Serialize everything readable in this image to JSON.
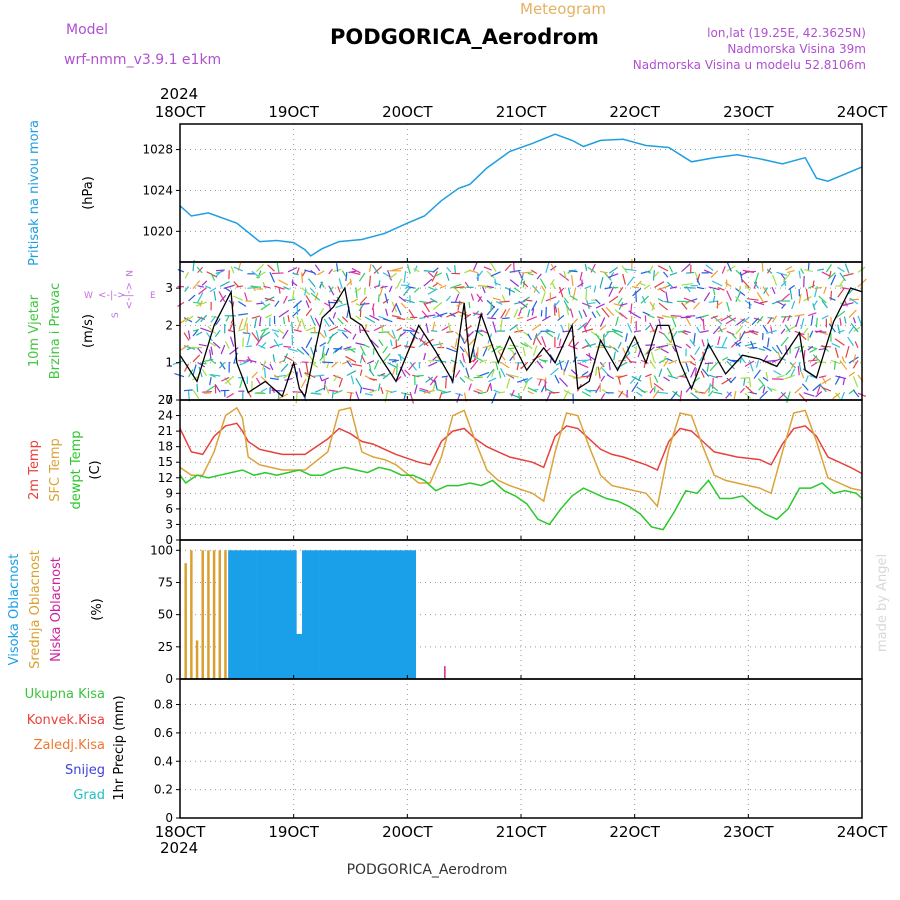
{
  "header": {
    "model_label": "Model",
    "model_name": "wrf-nmm_v3.9.1  e1km",
    "title": "PODGORICA_Aerodrom",
    "subtitle": "Meteogram",
    "lonlat": "lon,lat (19.25E, 42.3625N)",
    "elevation": "Nadmorska Visina 39m",
    "model_elevation": "Nadmorska Visina u modelu 52.8106m",
    "year_top": "2024",
    "year_bottom": "2024",
    "footer_station": "PODGORICA_Aerodrom",
    "watermark": "made by Angel"
  },
  "colors": {
    "pressure": "#1f9fe0",
    "temp2m": "#e8413c",
    "sfc_temp": "#dba33a",
    "dewpoint": "#2cc82c",
    "wind_line": "#000000",
    "wind_label": "#3fc63f",
    "wind_dir_label": "#c070e0",
    "cloud_high": "#1aa0e8",
    "cloud_mid": "#d9a030",
    "cloud_low": "#d020a0",
    "precip_total": "#3bc43b",
    "precip_conv": "#e8413c",
    "precip_frz": "#f07830",
    "precip_snow": "#4040e0",
    "precip_hail": "#22c0c0",
    "grid": "#999999",
    "header_purple": "#b050d0",
    "header_orange": "#e8b060"
  },
  "chart_data": [
    {
      "type": "line",
      "id": "pressure",
      "label_lines": [
        "Pritisak na nivou mora"
      ],
      "units": "(hPa)",
      "xlim_days": [
        18,
        24
      ],
      "ylim": [
        1017,
        1030.5
      ],
      "yticks": [
        "1020",
        "1024",
        "1028"
      ],
      "ytick_values": [
        1020,
        1024,
        1028
      ],
      "series": [
        {
          "x": [
            18.0,
            18.1,
            18.25,
            18.5,
            18.7,
            18.85,
            19.0,
            19.1,
            19.15,
            19.25,
            19.4,
            19.6,
            19.8,
            20.0,
            20.15,
            20.3,
            20.45,
            20.55,
            20.7,
            20.9,
            21.1,
            21.3,
            21.45,
            21.55,
            21.7,
            21.9,
            22.1,
            22.3,
            22.5,
            22.7,
            22.9,
            23.1,
            23.3,
            23.5,
            23.6,
            23.7,
            23.85,
            24.0
          ],
          "y": [
            1022.5,
            1021.5,
            1021.8,
            1020.8,
            1019.0,
            1019.1,
            1018.9,
            1018.2,
            1017.6,
            1018.3,
            1019.0,
            1019.2,
            1019.8,
            1020.8,
            1021.5,
            1023.0,
            1024.2,
            1024.6,
            1026.2,
            1027.8,
            1028.6,
            1029.5,
            1028.9,
            1028.3,
            1028.9,
            1029.0,
            1028.4,
            1028.2,
            1026.8,
            1027.2,
            1027.5,
            1027.1,
            1026.6,
            1027.2,
            1025.2,
            1024.9,
            1025.6,
            1026.3
          ]
        }
      ]
    },
    {
      "type": "line",
      "id": "wind",
      "label_lines": [
        "10m Vjetar",
        "Brzina i Pravac"
      ],
      "units": "(m/s)",
      "dir_labels": [
        "N",
        "W",
        "E",
        "S"
      ],
      "xlim_days": [
        18,
        24
      ],
      "ylim": [
        0,
        3.7
      ],
      "yticks": [
        "0",
        "1",
        "2",
        "3"
      ],
      "ytick_values": [
        0,
        1,
        2,
        3
      ],
      "series": [
        {
          "name": "wind speed",
          "x": [
            18.0,
            18.15,
            18.3,
            18.45,
            18.5,
            18.6,
            18.75,
            18.9,
            19.0,
            19.05,
            19.1,
            19.25,
            19.35,
            19.45,
            19.5,
            19.6,
            19.75,
            19.9,
            20.1,
            20.25,
            20.4,
            20.5,
            20.55,
            20.65,
            20.8,
            20.9,
            21.05,
            21.2,
            21.3,
            21.45,
            21.5,
            21.6,
            21.7,
            21.85,
            22.0,
            22.1,
            22.2,
            22.3,
            22.4,
            22.5,
            22.65,
            22.8,
            22.95,
            23.1,
            23.25,
            23.45,
            23.5,
            23.6,
            23.75,
            23.9,
            24.0
          ],
          "y": [
            1.2,
            0.5,
            2.0,
            2.9,
            1.0,
            0.2,
            0.5,
            0.1,
            1.0,
            0.3,
            0.1,
            2.2,
            2.5,
            3.0,
            2.2,
            2.0,
            1.2,
            0.5,
            2.0,
            1.3,
            0.5,
            2.6,
            1.0,
            2.3,
            1.0,
            1.7,
            0.8,
            1.4,
            1.0,
            2.0,
            0.3,
            0.5,
            1.6,
            0.8,
            1.7,
            1.0,
            2.0,
            2.0,
            1.0,
            0.3,
            1.5,
            0.7,
            1.2,
            1.1,
            0.9,
            1.8,
            0.8,
            0.6,
            2.1,
            3.0,
            2.9
          ]
        }
      ]
    },
    {
      "type": "line",
      "id": "temperature",
      "label_lines": [
        "2m Temp",
        "SFC Temp",
        "dewpt Temp"
      ],
      "units": "(C)",
      "xlim_days": [
        18,
        24
      ],
      "ylim": [
        0,
        27
      ],
      "yticks": [
        "0",
        "3",
        "6",
        "9",
        "12",
        "15",
        "18",
        "21",
        "24",
        "27"
      ],
      "ytick_values": [
        0,
        3,
        6,
        9,
        12,
        15,
        18,
        21,
        24,
        27
      ],
      "series": [
        {
          "name": "2m Temp",
          "x": [
            18.0,
            18.1,
            18.2,
            18.3,
            18.4,
            18.5,
            18.55,
            18.6,
            18.7,
            18.8,
            18.9,
            19.1,
            19.3,
            19.4,
            19.5,
            19.6,
            19.7,
            19.8,
            19.9,
            20.1,
            20.2,
            20.3,
            20.4,
            20.5,
            20.6,
            20.7,
            20.8,
            20.9,
            21.1,
            21.2,
            21.3,
            21.4,
            21.5,
            21.6,
            21.7,
            21.8,
            21.9,
            22.1,
            22.2,
            22.3,
            22.4,
            22.5,
            22.6,
            22.7,
            22.8,
            22.9,
            23.1,
            23.2,
            23.3,
            23.4,
            23.5,
            23.6,
            23.7,
            23.8,
            23.9,
            24.0
          ],
          "y": [
            21.5,
            17.0,
            16.5,
            20.0,
            22.0,
            22.5,
            21.0,
            19.0,
            17.5,
            17.0,
            16.5,
            16.5,
            19.5,
            21.5,
            20.5,
            19.0,
            18.5,
            17.5,
            16.5,
            15.0,
            14.5,
            19.0,
            21.0,
            21.5,
            19.5,
            18.0,
            17.0,
            16.0,
            15.0,
            14.0,
            20.0,
            22.0,
            21.5,
            19.5,
            17.5,
            16.5,
            16.0,
            14.5,
            13.5,
            19.0,
            21.5,
            21.0,
            19.0,
            17.0,
            16.5,
            16.0,
            15.5,
            14.5,
            18.5,
            21.5,
            22.0,
            20.0,
            16.0,
            15.0,
            14.0,
            12.8
          ]
        },
        {
          "name": "SFC Temp",
          "x": [
            18.0,
            18.1,
            18.2,
            18.3,
            18.4,
            18.5,
            18.55,
            18.6,
            18.7,
            18.8,
            18.9,
            19.1,
            19.3,
            19.4,
            19.5,
            19.6,
            19.7,
            19.8,
            19.9,
            20.1,
            20.2,
            20.3,
            20.4,
            20.5,
            20.6,
            20.7,
            20.8,
            20.9,
            21.1,
            21.2,
            21.3,
            21.4,
            21.5,
            21.6,
            21.7,
            21.8,
            21.9,
            22.1,
            22.2,
            22.3,
            22.4,
            22.5,
            22.6,
            22.7,
            22.8,
            22.9,
            23.1,
            23.2,
            23.3,
            23.4,
            23.5,
            23.6,
            23.7,
            23.8,
            23.9,
            24.0
          ],
          "y": [
            14.0,
            12.5,
            12.5,
            17.0,
            24.0,
            25.5,
            23.5,
            16.0,
            14.5,
            14.0,
            13.5,
            13.5,
            17.0,
            25.0,
            25.5,
            17.0,
            16.0,
            15.5,
            14.5,
            11.0,
            11.0,
            16.0,
            24.0,
            25.0,
            19.0,
            13.5,
            11.5,
            10.5,
            9.0,
            7.5,
            17.0,
            24.5,
            24.0,
            18.0,
            12.5,
            10.5,
            10.0,
            9.0,
            6.5,
            17.5,
            24.5,
            24.0,
            18.0,
            12.5,
            11.5,
            11.0,
            10.0,
            9.0,
            17.0,
            24.5,
            25.0,
            19.0,
            12.0,
            11.0,
            10.0,
            9.5
          ]
        },
        {
          "name": "dewpt Temp",
          "x": [
            18.0,
            18.05,
            18.15,
            18.25,
            18.35,
            18.45,
            18.55,
            18.65,
            18.75,
            18.85,
            18.95,
            19.05,
            19.15,
            19.25,
            19.35,
            19.45,
            19.55,
            19.65,
            19.75,
            19.85,
            19.95,
            20.05,
            20.15,
            20.25,
            20.35,
            20.45,
            20.55,
            20.65,
            20.75,
            20.85,
            20.95,
            21.05,
            21.15,
            21.25,
            21.35,
            21.45,
            21.55,
            21.65,
            21.75,
            21.85,
            21.95,
            22.05,
            22.15,
            22.25,
            22.35,
            22.45,
            22.55,
            22.65,
            22.75,
            22.85,
            22.95,
            23.05,
            23.15,
            23.25,
            23.35,
            23.45,
            23.55,
            23.65,
            23.75,
            23.85,
            23.95,
            24.0
          ],
          "y": [
            12.5,
            11.0,
            12.5,
            12.0,
            12.5,
            13.0,
            13.5,
            12.5,
            13.0,
            12.5,
            13.0,
            13.5,
            12.5,
            12.5,
            13.5,
            14.0,
            13.5,
            13.0,
            14.0,
            13.5,
            12.5,
            12.5,
            11.5,
            9.5,
            10.5,
            10.5,
            11.0,
            10.5,
            11.5,
            9.5,
            8.5,
            7.0,
            4.0,
            3.0,
            6.0,
            8.5,
            10.0,
            9.0,
            8.0,
            7.5,
            6.5,
            5.0,
            2.5,
            2.0,
            5.5,
            9.5,
            9.0,
            11.5,
            8.0,
            8.0,
            8.5,
            6.5,
            5.0,
            4.0,
            6.0,
            10.0,
            10.0,
            11.0,
            9.0,
            9.5,
            9.0,
            8.0
          ]
        }
      ]
    },
    {
      "type": "bar",
      "id": "clouds",
      "label_lines": [
        "Visoka Oblacnost",
        "Srednja Oblacnost",
        "Niska Oblacnost"
      ],
      "units": "(%)",
      "xlim_days": [
        18,
        24
      ],
      "ylim": [
        0,
        108
      ],
      "yticks": [
        "0",
        "25",
        "50",
        "75",
        "100"
      ],
      "ytick_values": [
        0,
        25,
        50,
        75,
        100
      ],
      "series": [
        {
          "name": "Visoka Oblacnost",
          "x": [
            18.45,
            18.5,
            18.55,
            18.6,
            18.65,
            18.7,
            18.75,
            18.8,
            18.85,
            18.9,
            18.95,
            19.0,
            19.05,
            19.1,
            19.15,
            19.2,
            19.25,
            19.3,
            19.35,
            19.4,
            19.45,
            19.5,
            19.55,
            19.6,
            19.65,
            19.7,
            19.75,
            19.8,
            19.85,
            19.9,
            19.95,
            20.0,
            20.05
          ],
          "y": [
            100,
            100,
            100,
            100,
            100,
            100,
            100,
            100,
            100,
            100,
            100,
            100,
            35,
            100,
            100,
            100,
            100,
            100,
            100,
            100,
            100,
            100,
            100,
            100,
            100,
            100,
            100,
            100,
            100,
            100,
            100,
            100,
            100
          ]
        },
        {
          "name": "Srednja Oblacnost",
          "x": [
            18.05,
            18.1,
            18.15,
            18.2,
            18.25,
            18.3,
            18.35,
            18.4,
            18.45,
            18.5,
            18.55,
            18.6,
            18.65,
            18.7,
            18.8,
            18.9,
            19.0,
            19.1,
            19.2,
            19.3,
            19.4,
            19.5,
            19.6,
            19.7,
            19.8,
            19.9,
            20.0
          ],
          "y": [
            90,
            100,
            30,
            100,
            100,
            100,
            100,
            100,
            100,
            100,
            100,
            55,
            100,
            100,
            100,
            100,
            60,
            30,
            100,
            100,
            100,
            100,
            100,
            100,
            100,
            100,
            100
          ]
        },
        {
          "name": "Niska Oblacnost",
          "x": [
            20.33
          ],
          "y": [
            10
          ]
        }
      ]
    },
    {
      "type": "bar",
      "id": "precip",
      "label_lines": [
        "Ukupna Kisa",
        "Konvek.Kisa",
        "Zaledj.Kisa",
        "Snijeg",
        "Grad"
      ],
      "axis_label": "1hr Precip (mm)",
      "xlim_days": [
        18,
        24
      ],
      "ylim": [
        0,
        0.98
      ],
      "yticks": [
        "0",
        "0.2",
        "0.4",
        "0.6",
        "0.8"
      ],
      "ytick_values": [
        0,
        0.2,
        0.4,
        0.6,
        0.8
      ],
      "series": [
        {
          "name": "Ukupna Kisa",
          "values": []
        },
        {
          "name": "Konvek.Kisa",
          "values": []
        },
        {
          "name": "Zaledj.Kisa",
          "values": []
        },
        {
          "name": "Snijeg",
          "values": []
        },
        {
          "name": "Grad",
          "values": []
        }
      ]
    }
  ],
  "x_axis": {
    "days": [
      18,
      19,
      20,
      21,
      22,
      23,
      24
    ],
    "tick_labels": [
      "18OCT",
      "19OCT",
      "20OCT",
      "21OCT",
      "22OCT",
      "23OCT",
      "24OCT"
    ]
  }
}
